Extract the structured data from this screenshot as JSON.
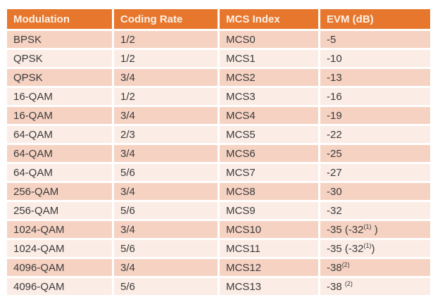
{
  "colors": {
    "header_bg": "#E8772E",
    "header_text": "#FBF2E8",
    "row_dark": "#F6D2C2",
    "row_light": "#FBECE5",
    "body_text": "#3B3B3B",
    "page_bg": "#FFFFFF"
  },
  "chart_data": {
    "type": "table",
    "columns": [
      "Modulation",
      "Coding Rate",
      "MCS Index",
      "EVM (dB)"
    ],
    "rows": [
      {
        "modulation": "BPSK",
        "coding_rate": "1/2",
        "mcs_index": "MCS0",
        "evm": "-5",
        "evm_sup": "",
        "evm_tail": ""
      },
      {
        "modulation": "QPSK",
        "coding_rate": "1/2",
        "mcs_index": "MCS1",
        "evm": "-10",
        "evm_sup": "",
        "evm_tail": ""
      },
      {
        "modulation": "QPSK",
        "coding_rate": "3/4",
        "mcs_index": "MCS2",
        "evm": "-13",
        "evm_sup": "",
        "evm_tail": ""
      },
      {
        "modulation": "16-QAM",
        "coding_rate": "1/2",
        "mcs_index": "MCS3",
        "evm": "-16",
        "evm_sup": "",
        "evm_tail": ""
      },
      {
        "modulation": "16-QAM",
        "coding_rate": "3/4",
        "mcs_index": "MCS4",
        "evm": "-19",
        "evm_sup": "",
        "evm_tail": ""
      },
      {
        "modulation": "64-QAM",
        "coding_rate": "2/3",
        "mcs_index": "MCS5",
        "evm": "-22",
        "evm_sup": "",
        "evm_tail": ""
      },
      {
        "modulation": "64-QAM",
        "coding_rate": "3/4",
        "mcs_index": "MCS6",
        "evm": "-25",
        "evm_sup": "",
        "evm_tail": ""
      },
      {
        "modulation": "64-QAM",
        "coding_rate": "5/6",
        "mcs_index": "MCS7",
        "evm": "-27",
        "evm_sup": "",
        "evm_tail": ""
      },
      {
        "modulation": "256-QAM",
        "coding_rate": "3/4",
        "mcs_index": "MCS8",
        "evm": "-30",
        "evm_sup": "",
        "evm_tail": ""
      },
      {
        "modulation": "256-QAM",
        "coding_rate": "5/6",
        "mcs_index": "MCS9",
        "evm": "-32",
        "evm_sup": "",
        "evm_tail": ""
      },
      {
        "modulation": "1024-QAM",
        "coding_rate": "3/4",
        "mcs_index": "MCS10",
        "evm": "-35 (-32",
        "evm_sup": "(1)",
        "evm_tail": " )"
      },
      {
        "modulation": "1024-QAM",
        "coding_rate": "5/6",
        "mcs_index": "MCS11",
        "evm": "-35 (-32",
        "evm_sup": "(1)",
        "evm_tail": ")"
      },
      {
        "modulation": "4096-QAM",
        "coding_rate": "3/4",
        "mcs_index": "MCS12",
        "evm": "-38",
        "evm_sup": "(2)",
        "evm_tail": ""
      },
      {
        "modulation": "4096-QAM",
        "coding_rate": "5/6",
        "mcs_index": "MCS13",
        "evm": "-38 ",
        "evm_sup": "(2)",
        "evm_tail": ""
      }
    ]
  }
}
